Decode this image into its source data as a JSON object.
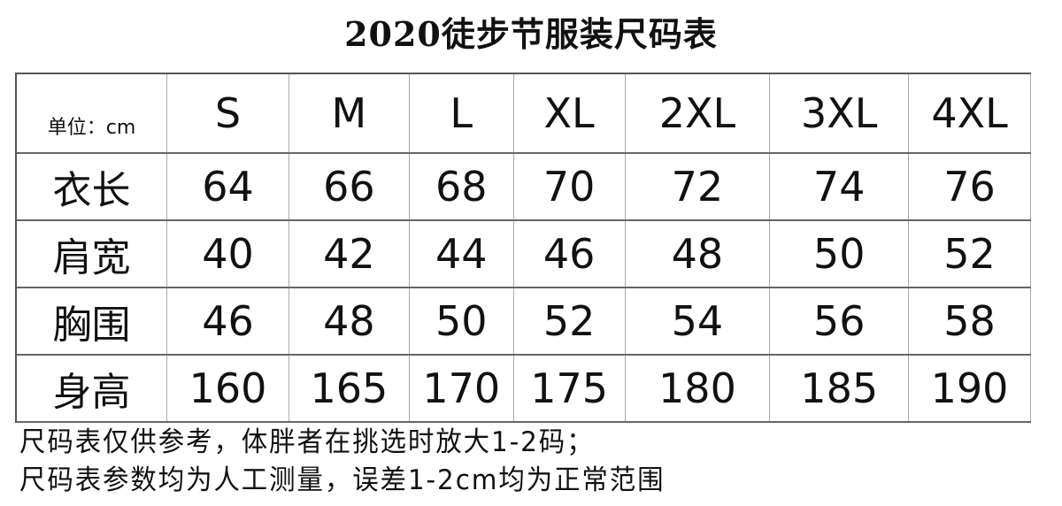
{
  "title": "2020徒步节服装尺码表",
  "unit_label": "单位：cm",
  "sizes": [
    "S",
    "M",
    "L",
    "XL",
    "2XL",
    "3XL",
    "4XL"
  ],
  "rows": [
    {
      "label": "衣长",
      "values": [
        "64",
        "66",
        "68",
        "70",
        "72",
        "74",
        "76"
      ]
    },
    {
      "label": "肩宽",
      "values": [
        "40",
        "42",
        "44",
        "46",
        "48",
        "50",
        "52"
      ]
    },
    {
      "label": "胸围",
      "values": [
        "46",
        "48",
        "50",
        "52",
        "54",
        "56",
        "58"
      ]
    },
    {
      "label": "身高",
      "values": [
        "160",
        "165",
        "170",
        "175",
        "180",
        "185",
        "190"
      ]
    }
  ],
  "notes": [
    "尺码表仅供参考，体胖者在挑选时放大1-2码；",
    "尺码表参数均为人工测量，误差1-2cm均为正常范围"
  ]
}
